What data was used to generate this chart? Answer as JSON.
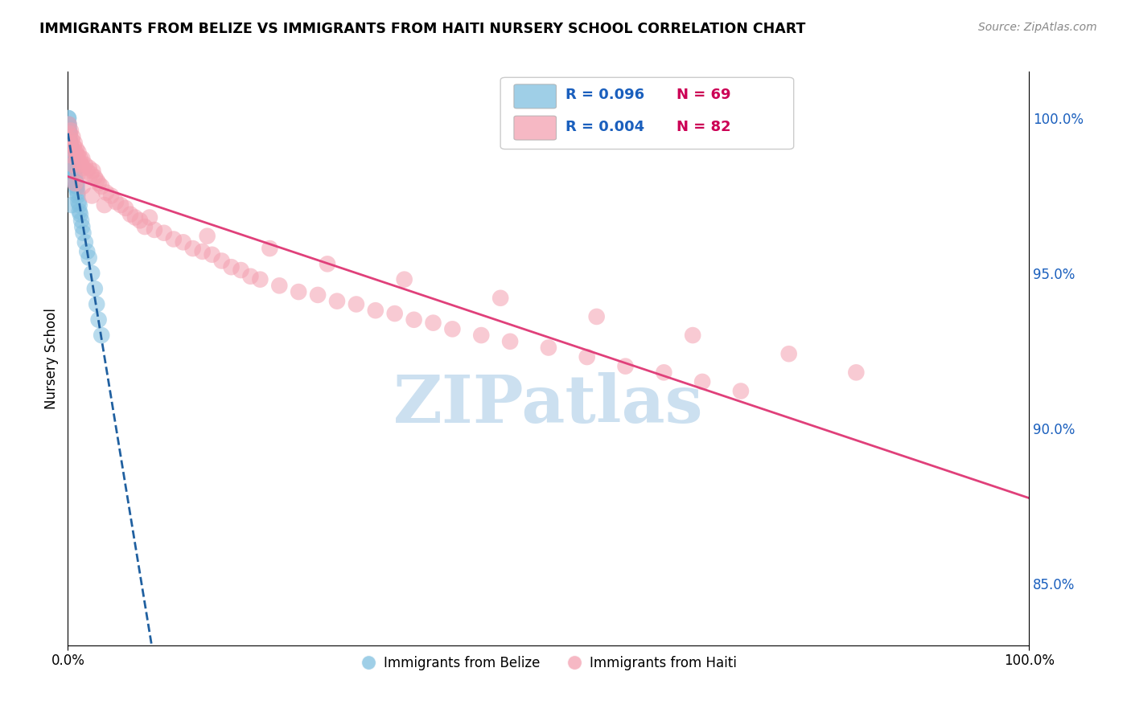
{
  "title": "IMMIGRANTS FROM BELIZE VS IMMIGRANTS FROM HAITI NURSERY SCHOOL CORRELATION CHART",
  "source_text": "Source: ZipAtlas.com",
  "ylabel": "Nursery School",
  "series": [
    {
      "name": "Immigrants from Belize",
      "R": 0.096,
      "N": 69,
      "color": "#7fbfdf",
      "line_color": "#2060a0",
      "line_style": "--",
      "x": [
        0.05,
        0.05,
        0.08,
        0.08,
        0.08,
        0.1,
        0.1,
        0.12,
        0.12,
        0.15,
        0.15,
        0.18,
        0.18,
        0.2,
        0.2,
        0.22,
        0.22,
        0.25,
        0.25,
        0.28,
        0.3,
        0.3,
        0.32,
        0.35,
        0.35,
        0.38,
        0.4,
        0.4,
        0.42,
        0.45,
        0.45,
        0.48,
        0.5,
        0.5,
        0.55,
        0.55,
        0.6,
        0.6,
        0.65,
        0.65,
        0.7,
        0.7,
        0.75,
        0.8,
        0.8,
        0.85,
        0.9,
        0.9,
        0.95,
        1.0,
        1.0,
        1.1,
        1.2,
        1.2,
        1.3,
        1.4,
        1.5,
        1.6,
        1.8,
        2.0,
        2.2,
        2.5,
        2.8,
        3.0,
        3.2,
        3.5,
        0.05,
        0.1,
        0.4
      ],
      "y": [
        100.0,
        100.0,
        99.8,
        99.8,
        99.6,
        99.7,
        99.5,
        99.6,
        99.4,
        99.5,
        99.3,
        99.5,
        99.2,
        99.3,
        99.2,
        99.1,
        99.0,
        99.2,
        98.9,
        99.0,
        99.1,
        98.8,
        98.9,
        98.8,
        99.0,
        98.7,
        98.9,
        98.6,
        98.7,
        98.8,
        98.5,
        98.6,
        98.7,
        98.4,
        98.5,
        98.3,
        98.4,
        98.2,
        98.3,
        98.1,
        98.2,
        98.0,
        98.1,
        97.9,
        98.0,
        97.8,
        97.9,
        97.7,
        97.8,
        97.6,
        97.5,
        97.3,
        97.2,
        97.0,
        96.9,
        96.7,
        96.5,
        96.3,
        96.0,
        95.7,
        95.5,
        95.0,
        94.5,
        94.0,
        93.5,
        93.0,
        99.0,
        98.5,
        97.2
      ]
    },
    {
      "name": "Immigrants from Haiti",
      "R": 0.004,
      "N": 82,
      "color": "#f4a0b0",
      "line_color": "#e0407a",
      "line_style": "-",
      "x": [
        0.1,
        0.2,
        0.3,
        0.4,
        0.5,
        0.6,
        0.7,
        0.8,
        0.9,
        1.0,
        1.1,
        1.2,
        1.3,
        1.4,
        1.5,
        1.6,
        1.8,
        2.0,
        2.2,
        2.4,
        2.6,
        2.8,
        3.0,
        3.2,
        3.5,
        4.0,
        4.5,
        5.0,
        5.5,
        6.0,
        6.5,
        7.0,
        7.5,
        8.0,
        9.0,
        10.0,
        11.0,
        12.0,
        13.0,
        14.0,
        15.0,
        16.0,
        17.0,
        18.0,
        19.0,
        20.0,
        22.0,
        24.0,
        26.0,
        28.0,
        30.0,
        32.0,
        34.0,
        36.0,
        38.0,
        40.0,
        43.0,
        46.0,
        50.0,
        54.0,
        58.0,
        62.0,
        66.0,
        70.0,
        0.15,
        0.35,
        0.55,
        0.75,
        1.05,
        1.55,
        2.5,
        3.8,
        8.5,
        14.5,
        21.0,
        27.0,
        35.0,
        45.0,
        55.0,
        65.0,
        75.0,
        82.0
      ],
      "y": [
        99.8,
        99.5,
        99.6,
        99.3,
        99.4,
        99.1,
        99.2,
        98.9,
        99.0,
        98.8,
        98.9,
        98.6,
        98.7,
        98.5,
        98.7,
        98.4,
        98.5,
        98.3,
        98.4,
        98.2,
        98.3,
        98.1,
        98.0,
        97.9,
        97.8,
        97.6,
        97.5,
        97.3,
        97.2,
        97.1,
        96.9,
        96.8,
        96.7,
        96.5,
        96.4,
        96.3,
        96.1,
        96.0,
        95.8,
        95.7,
        95.6,
        95.4,
        95.2,
        95.1,
        94.9,
        94.8,
        94.6,
        94.4,
        94.3,
        94.1,
        94.0,
        93.8,
        93.7,
        93.5,
        93.4,
        93.2,
        93.0,
        92.8,
        92.6,
        92.3,
        92.0,
        91.8,
        91.5,
        91.2,
        99.2,
        98.8,
        98.5,
        97.9,
        98.2,
        97.8,
        97.5,
        97.2,
        96.8,
        96.2,
        95.8,
        95.3,
        94.8,
        94.2,
        93.6,
        93.0,
        92.4,
        91.8
      ]
    }
  ],
  "xlim": [
    0.0,
    100.0
  ],
  "ylim": [
    83.0,
    101.5
  ],
  "yticks_right": [
    85.0,
    90.0,
    95.0,
    100.0
  ],
  "background_color": "#ffffff",
  "grid_color": "#cccccc",
  "watermark_text": "ZIPatlas",
  "watermark_color": "#cce0f0",
  "legend_R_color": "#1a5fbd",
  "legend_N_color": "#cc0055"
}
